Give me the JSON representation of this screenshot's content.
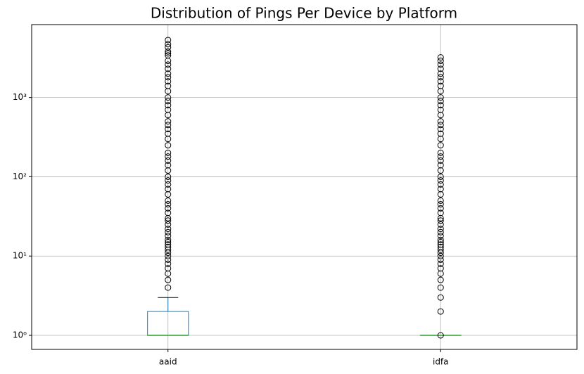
{
  "chart_data": {
    "type": "box",
    "title": "Distribution of Pings Per Device by Platform",
    "categories": [
      "aaid",
      "idfa"
    ],
    "log_y": true,
    "grid": true,
    "ylim": [
      0.665,
      8300
    ],
    "yticks": [
      {
        "value": 1,
        "label": "10⁰"
      },
      {
        "value": 10,
        "label": "10¹"
      },
      {
        "value": 100,
        "label": "10²"
      },
      {
        "value": 1000,
        "label": "10³"
      }
    ],
    "box_color": "#1f77b4",
    "median_color": "#2ca02c",
    "boxes": [
      {
        "whislo": 1,
        "q1": 1,
        "med": 1,
        "q3": 2,
        "whishi": 3,
        "fliers": [
          4,
          5,
          6,
          7,
          8,
          9,
          10,
          11,
          12,
          13,
          14,
          15,
          16,
          18,
          20,
          22,
          25,
          28,
          30,
          35,
          40,
          45,
          50,
          60,
          70,
          80,
          90,
          100,
          120,
          140,
          160,
          180,
          200,
          250,
          300,
          350,
          400,
          450,
          500,
          600,
          700,
          800,
          900,
          1000,
          1200,
          1400,
          1600,
          1800,
          2000,
          2300,
          2600,
          2900,
          3400,
          3600,
          3800,
          4300,
          4700,
          5300
        ]
      },
      {
        "whislo": 1,
        "q1": 1,
        "med": 1,
        "q3": 1,
        "whishi": 1,
        "fliers": [
          1,
          2,
          3,
          4,
          5,
          6,
          7,
          8,
          9,
          10,
          11,
          12,
          13,
          14,
          15,
          16,
          18,
          20,
          22,
          25,
          28,
          30,
          35,
          40,
          45,
          50,
          60,
          70,
          80,
          90,
          100,
          120,
          140,
          160,
          180,
          200,
          250,
          300,
          350,
          400,
          450,
          500,
          600,
          700,
          800,
          900,
          1000,
          1200,
          1400,
          1600,
          1800,
          2000,
          2300,
          2600,
          2900,
          3200
        ]
      }
    ]
  }
}
